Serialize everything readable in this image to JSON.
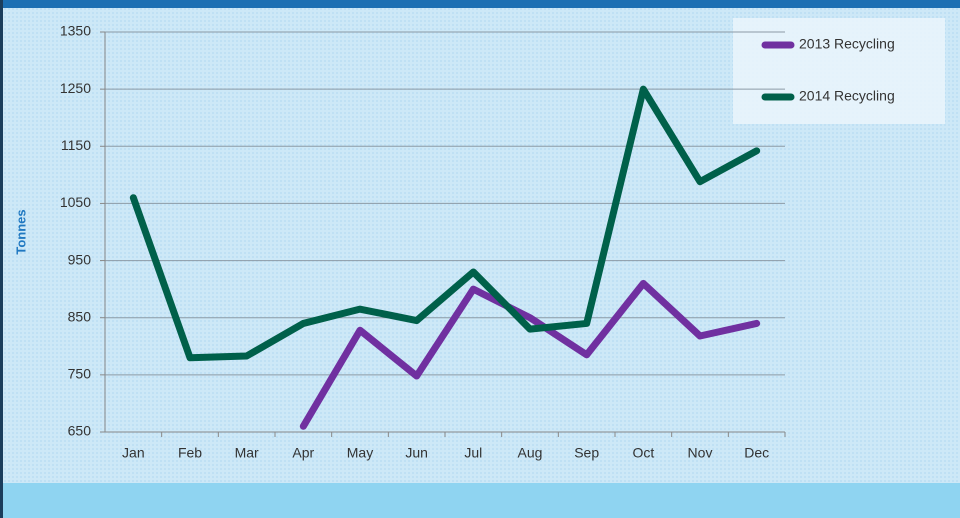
{
  "chart_data": {
    "type": "line",
    "y_label": "Tonnes",
    "categories": [
      "Jan",
      "Feb",
      "Mar",
      "Apr",
      "May",
      "Jun",
      "Jul",
      "Aug",
      "Sep",
      "Oct",
      "Nov",
      "Dec"
    ],
    "series": [
      {
        "name": "2013 Recycling",
        "color": "#7030a0",
        "values": [
          null,
          null,
          null,
          660,
          828,
          748,
          900,
          850,
          785,
          910,
          818,
          840
        ]
      },
      {
        "name": "2014 Recycling",
        "color": "#00604a",
        "values": [
          1060,
          780,
          783,
          840,
          865,
          845,
          930,
          830,
          840,
          1250,
          1088,
          1142
        ]
      }
    ],
    "ylim": [
      650,
      1350
    ],
    "yticks": [
      650,
      750,
      850,
      950,
      1050,
      1150,
      1250,
      1350
    ],
    "grid": true,
    "legend": "top-right"
  }
}
